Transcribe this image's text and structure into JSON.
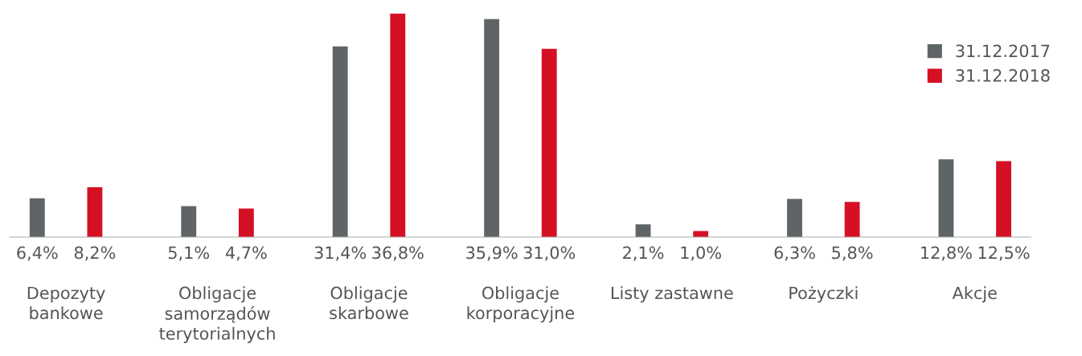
{
  "chart_data": {
    "type": "bar",
    "categories": [
      "Depozyty\nbankowe",
      "Obligacje\nsamorządów\nterytorialnych",
      "Obligacje\nskarbowe",
      "Obligacje\nkorporacyjne",
      "Listy zastawne",
      "Pożyczki",
      "Akcje"
    ],
    "series": [
      {
        "name": "31.12.2017",
        "color": "#5f6566",
        "values": [
          6.4,
          5.1,
          31.4,
          35.9,
          2.1,
          6.3,
          12.8
        ],
        "value_labels": [
          "6,4%",
          "5,1%",
          "31,4%",
          "35,9%",
          "2,1%",
          "6,3%",
          "12,8%"
        ]
      },
      {
        "name": "31.12.2018",
        "color": "#d51024",
        "values": [
          8.2,
          4.7,
          36.8,
          31.0,
          1.0,
          5.8,
          12.5
        ],
        "value_labels": [
          "8,2%",
          "4,7%",
          "36,8%",
          "31,0%",
          "1,0%",
          "5,8%",
          "12,5%"
        ]
      }
    ],
    "legend": "top right"
  }
}
